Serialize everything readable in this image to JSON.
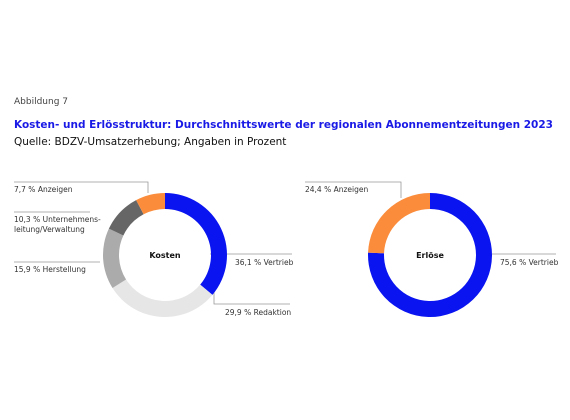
{
  "figure_label": "Abbildung 7",
  "title": "Kosten- und Erlösstruktur: Durchschnittswerte der regionalen Abonnementzeitungen 2023",
  "source": "Quelle: BDZV-Umsatzerhebung; Angaben in Prozent",
  "chart_data": [
    {
      "type": "pie",
      "title": "Kosten",
      "categories": [
        "Vertrieb",
        "Redaktion",
        "Herstellung",
        "Unternehmens-leitung/Verwaltung",
        "Anzeigen"
      ],
      "values": [
        36.1,
        29.9,
        15.9,
        10.3,
        7.7
      ],
      "value_labels": [
        "36,1 %",
        "29,9 %",
        "15,9 %",
        "10,3 %",
        "7,7 %"
      ],
      "colors": [
        "#0a14f0",
        "#e6e6e6",
        "#ababab",
        "#666666",
        "#fa8c3c"
      ]
    },
    {
      "type": "pie",
      "title": "Erlöse",
      "categories": [
        "Vertrieb",
        "Anzeigen"
      ],
      "values": [
        75.6,
        24.4
      ],
      "value_labels": [
        "75,6 %",
        "24,4 %"
      ],
      "colors": [
        "#0a14f0",
        "#fa8c3c"
      ]
    }
  ]
}
